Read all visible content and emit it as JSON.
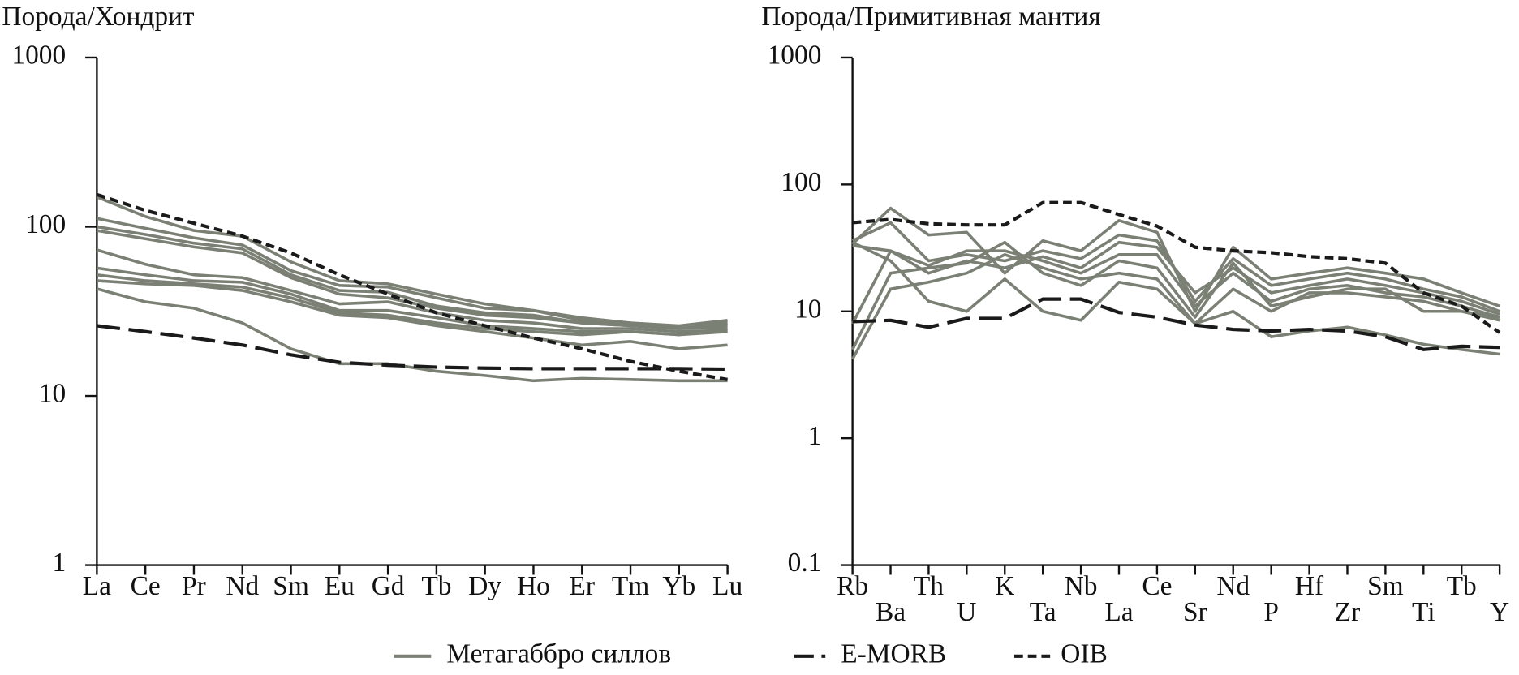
{
  "chart_data": [
    {
      "type": "line",
      "ylabel": "Порода/Хондрит",
      "log_scale": true,
      "categories": [
        "La",
        "Ce",
        "Pr",
        "Nd",
        "Sm",
        "Eu",
        "Gd",
        "Tb",
        "Dy",
        "Ho",
        "Er",
        "Tm",
        "Yb",
        "Lu"
      ],
      "ylim": [
        1,
        1000
      ],
      "yticks": [
        1,
        10,
        100,
        1000
      ],
      "series": [
        {
          "name": "Метагаббро силлов",
          "color": "#7b8075",
          "dash": "solid",
          "values": [
            [
              150,
              115,
              95,
              88,
              62,
              48,
              46,
              40,
              35,
              32,
              28,
              27,
              25,
              27
            ],
            [
              112,
              98,
              86,
              78,
              55,
              45,
              44,
              38,
              33,
              32,
              29,
              27,
              26,
              28
            ],
            [
              100,
              90,
              80,
              74,
              52,
              42,
              41,
              34,
              31,
              30,
              27,
              26,
              25,
              26
            ],
            [
              95,
              85,
              76,
              70,
              50,
              40,
              38,
              33,
              30,
              29,
              27,
              26,
              25,
              25
            ],
            [
              73,
              60,
              52,
              50,
              42,
              35,
              36,
              31,
              28,
              27,
              25,
              25,
              24,
              24
            ],
            [
              57,
              52,
              48,
              47,
              40,
              32,
              32,
              29,
              26,
              25,
              24,
              24,
              23,
              24
            ],
            [
              52,
              48,
              46,
              44,
              38,
              31,
              30,
              27,
              25,
              24,
              23,
              24,
              23,
              25
            ],
            [
              48,
              46,
              45,
              42,
              36,
              30,
              29,
              26,
              24,
              22,
              20,
              21,
              19,
              20
            ],
            [
              43,
              36,
              33,
              27,
              19,
              15.5,
              15.5,
              14,
              13.2,
              12.3,
              12.7,
              12.5,
              12.3,
              12.3
            ]
          ]
        },
        {
          "name": "E-MORB",
          "color": "#1a1a1a",
          "dash": "dashdot",
          "values": [
            [
              26,
              24,
              22,
              20,
              17.5,
              15.8,
              15.2,
              14.8,
              14.6,
              14.5,
              14.5,
              14.5,
              14.5,
              14.4
            ]
          ]
        },
        {
          "name": "OIB",
          "color": "#1a1a1a",
          "dash": "dashed",
          "values": [
            [
              155,
              125,
              105,
              88,
              70,
              52,
              40,
              31,
              26,
              22,
              19,
              16,
              14,
              12.5
            ]
          ]
        }
      ]
    },
    {
      "type": "line",
      "ylabel": "Порода/Примитивная мантия",
      "log_scale": true,
      "categories": [
        "Rb",
        "Ba",
        "Th",
        "U",
        "K",
        "Ta",
        "Nb",
        "La",
        "Ce",
        "Sr",
        "Nd",
        "P",
        "Hf",
        "Zr",
        "Sm",
        "Ti",
        "Tb",
        "Y"
      ],
      "ylim": [
        0.1,
        1000
      ],
      "yticks": [
        0.1,
        1,
        10,
        100,
        1000
      ],
      "series": [
        {
          "color": "#7b8075",
          "dash": "solid",
          "values": [
            [
              34,
              65,
              40,
              42,
              20,
              36,
              30,
              52,
              42,
              10,
              32,
              18,
              20,
              22,
              20,
              18,
              14,
              11
            ],
            [
              36,
              50,
              25,
              28,
              25,
              30,
              26,
              40,
              36,
              12,
              26,
              16,
              18,
              20,
              18,
              15,
              13,
              10
            ],
            [
              33,
              30,
              20,
              25,
              22,
              27,
              22,
              35,
              32,
              14,
              22,
              14,
              16,
              18,
              16,
              14,
              12,
              9.5
            ],
            [
              8,
              30,
              23,
              30,
              30,
              25,
              20,
              28,
              28,
              11,
              20,
              12,
              15,
              16,
              14,
              13,
              11,
              9
            ],
            [
              4.2,
              15,
              17,
              20,
              28,
              22,
              18,
              20,
              18,
              8,
              15,
              10,
              14,
              14,
              13,
              12,
              10,
              8.5
            ],
            [
              35,
              25,
              12,
              10,
              18,
              10,
              8.5,
              17,
              15,
              8,
              10,
              6.3,
              7,
              7.5,
              6.5,
              5.5,
              5,
              4.6
            ],
            [
              5,
              20,
              22,
              24,
              35,
              20,
              16,
              25,
              22,
              9,
              24,
              11,
              13,
              15,
              15,
              10,
              10,
              9
            ]
          ]
        },
        {
          "color": "#1a1a1a",
          "dash": "dashdot",
          "values": [
            [
              8.3,
              8.5,
              7.5,
              8.8,
              8.8,
              12.5,
              12.5,
              9.8,
              9,
              7.8,
              7.2,
              7,
              7.2,
              7,
              6.3,
              5,
              5.3,
              5.2
            ]
          ]
        },
        {
          "color": "#1a1a1a",
          "dash": "dashed",
          "values": [
            [
              50,
              53,
              49,
              48,
              48,
              72,
              72,
              58,
              47,
              32,
              30,
              29,
              27,
              26,
              24,
              14,
              11,
              6.8
            ]
          ]
        }
      ]
    }
  ]
}
